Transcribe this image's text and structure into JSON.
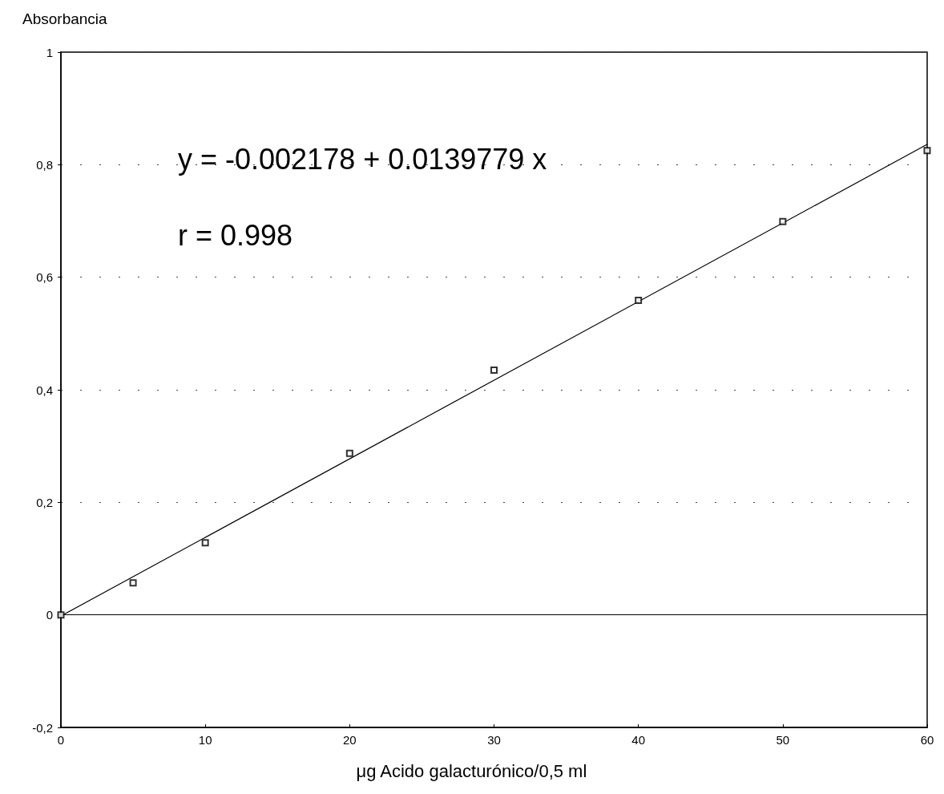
{
  "chart_data": {
    "type": "scatter",
    "ylabel": "Absorbancia",
    "xlabel": "μg Acido galacturónico/0,5 ml",
    "annotations": [
      "y = -0.002178 + 0.0139779 x",
      "r = 0.998"
    ],
    "series": [
      {
        "color": "#000000",
        "marker": "square",
        "x": [
          0,
          5,
          10,
          20,
          30,
          40,
          50,
          60
        ],
        "values": [
          0,
          0.057,
          0.128,
          0.287,
          0.435,
          0.559,
          0.699,
          0.825
        ]
      },
      {
        "type": "line",
        "color": "#000000",
        "marker": "none",
        "line_style": "solid",
        "x": [
          0,
          60
        ],
        "values": [
          -0.002,
          0.836
        ]
      }
    ],
    "xlim": [
      0,
      60
    ],
    "xticks": [
      0,
      10,
      20,
      30,
      40,
      50,
      60
    ],
    "ylim": [
      -0.2,
      1
    ],
    "yticks": [
      {
        "value": -0.2,
        "label": "-0,2"
      },
      0,
      {
        "value": 0.2,
        "label": "0,2"
      },
      {
        "value": 0.4,
        "label": "0,4"
      },
      {
        "value": 0.6,
        "label": "0,6"
      },
      {
        "value": 0.8,
        "label": "0,8"
      },
      1
    ],
    "grid": "y",
    "ref_lines": [
      {
        "axis": "y",
        "value": 0,
        "color": "#000000",
        "line_style": "solid"
      }
    ]
  }
}
